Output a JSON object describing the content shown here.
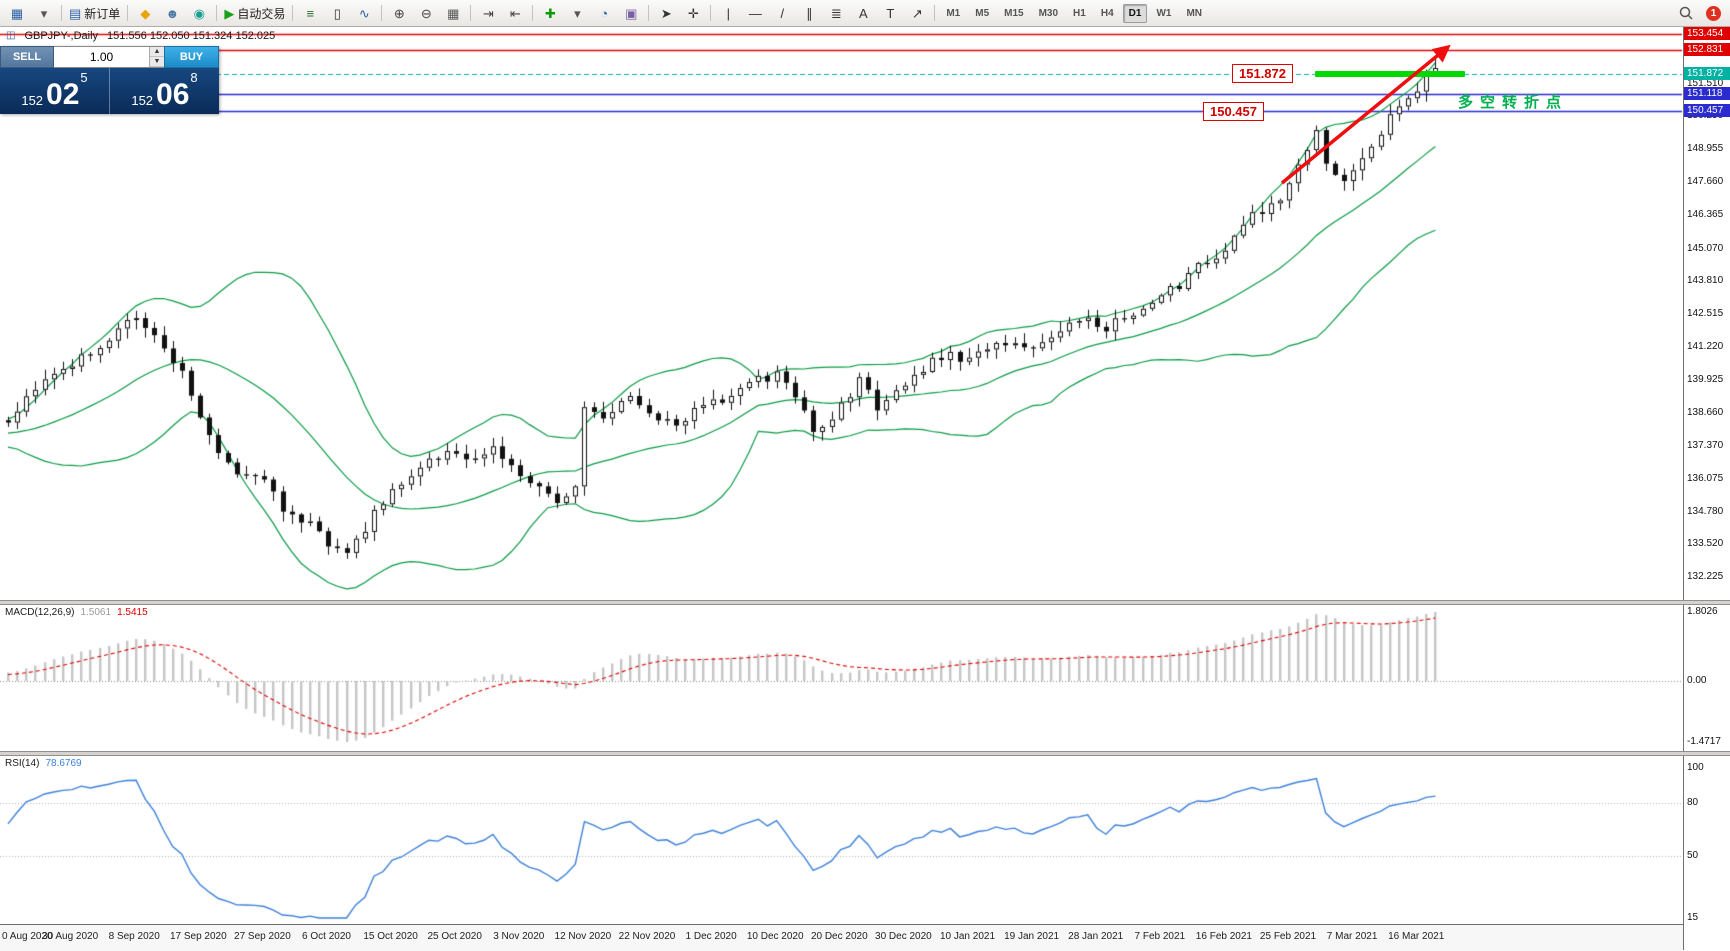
{
  "toolbar": {
    "groups": [
      {
        "items": [
          {
            "name": "chart-window-icon",
            "glyph": "▦",
            "color": "#2a5fa5"
          },
          {
            "name": "window-dropdown-caret-icon",
            "glyph": "▾",
            "color": "#555"
          }
        ]
      },
      {
        "items": [
          {
            "name": "new-order-button",
            "glyph": "▤",
            "color": "#2a5fa5",
            "label": "新订单"
          }
        ]
      },
      {
        "items": [
          {
            "name": "megaphone-icon",
            "glyph": "◆",
            "color": "#e8a400"
          },
          {
            "name": "profile-icon",
            "glyph": "☻",
            "color": "#4a7aa6"
          },
          {
            "name": "community-icon",
            "glyph": "◉",
            "color": "#1a9e8f"
          }
        ]
      },
      {
        "items": [
          {
            "name": "autotrade-button",
            "glyph": "▶",
            "color": "#18a018",
            "label": "自动交易"
          }
        ]
      },
      {
        "items": [
          {
            "name": "bar-chart-icon",
            "glyph": "≡",
            "color": "#2f6f2f"
          },
          {
            "name": "candlestick-chart-icon",
            "glyph": "▯",
            "color": "#333333"
          },
          {
            "name": "line-chart-icon",
            "glyph": "∿",
            "color": "#2a5fa5"
          }
        ]
      },
      {
        "items": [
          {
            "name": "zoom-in-icon",
            "glyph": "⊕",
            "color": "#444444"
          },
          {
            "name": "zoom-out-icon",
            "glyph": "⊖",
            "color": "#444444"
          },
          {
            "name": "tile-windows-icon",
            "glyph": "▦",
            "color": "#555555"
          }
        ]
      },
      {
        "items": [
          {
            "name": "auto-scroll-icon",
            "glyph": "⇥",
            "color": "#444444"
          },
          {
            "name": "chart-shift-icon",
            "glyph": "⇤",
            "color": "#444444"
          }
        ]
      },
      {
        "items": [
          {
            "name": "indicators-icon",
            "glyph": "✚",
            "color": "#0a9a0a"
          },
          {
            "name": "indicators-caret-icon",
            "glyph": "▾",
            "color": "#555555"
          },
          {
            "name": "periods-icon",
            "glyph": "◔",
            "color": "#2a5fa5"
          },
          {
            "name": "templates-icon",
            "glyph": "▣",
            "color": "#7a5fa5"
          }
        ]
      },
      {
        "items": [
          {
            "name": "cursor-icon",
            "glyph": "➤",
            "color": "#333333"
          },
          {
            "name": "crosshair-icon",
            "glyph": "✛",
            "color": "#333333"
          }
        ]
      },
      {
        "items": [
          {
            "name": "vertical-line-icon",
            "glyph": "|",
            "color": "#333333"
          },
          {
            "name": "horizontal-line-icon",
            "glyph": "—",
            "color": "#333333"
          },
          {
            "name": "trendline-icon",
            "glyph": "/",
            "color": "#333333"
          },
          {
            "name": "channel-icon",
            "glyph": "∥",
            "color": "#333333"
          },
          {
            "name": "fibonacci-icon",
            "glyph": "≣",
            "color": "#333333"
          },
          {
            "name": "text-icon",
            "glyph": "A",
            "color": "#333333"
          },
          {
            "name": "label-icon",
            "glyph": "T",
            "color": "#333333"
          },
          {
            "name": "arrows-icon",
            "glyph": "↗",
            "color": "#333333"
          }
        ]
      }
    ],
    "timeframes": [
      "M1",
      "M5",
      "M15",
      "M30",
      "H1",
      "H4",
      "D1",
      "W1",
      "MN"
    ],
    "active_timeframe": "D1",
    "notification_count": "1"
  },
  "chart_header": {
    "symbol_period": "GBPJPY-,Daily",
    "ohlc": "151.556 152.050 151.324 152.025"
  },
  "trade_panel": {
    "sell_label": "SELL",
    "buy_label": "BUY",
    "volume": "1.00",
    "sell_price": {
      "prefix": "152",
      "big": "02",
      "sup": "5"
    },
    "buy_price": {
      "prefix": "152",
      "big": "06",
      "sup": "8"
    }
  },
  "annotations": {
    "resistance_label": "151.872",
    "support_label": "150.457",
    "note_text": "多空转折点"
  },
  "price_axis": {
    "plain_ticks": [
      "151.510",
      "150.250",
      "148.955",
      "147.660",
      "146.365",
      "145.070",
      "143.810",
      "142.515",
      "141.220",
      "139.925",
      "138.660",
      "137.370",
      "136.075",
      "134.780",
      "133.520",
      "132.225"
    ],
    "line_labels": [
      {
        "value": "153.454",
        "bg": "#e00000"
      },
      {
        "value": "152.831",
        "bg": "#e00000"
      },
      {
        "value": "151.872",
        "bg": "#00b2a2"
      },
      {
        "value": "151.118",
        "bg": "#2b2bd0"
      },
      {
        "value": "150.457",
        "bg": "#2b2bd0"
      }
    ]
  },
  "macd_panel": {
    "name": "MACD(12,26,9)",
    "value_main": "1.5061",
    "value_signal": "1.5415",
    "scale": [
      "1.8026",
      "0.00",
      "-1.4717"
    ]
  },
  "rsi_panel": {
    "name": "RSI(14)",
    "value": "78.6769",
    "scale": [
      "100",
      "80",
      "50",
      "15"
    ]
  },
  "time_axis": [
    "0 Aug 2020",
    "30 Aug 2020",
    "8 Sep 2020",
    "17 Sep 2020",
    "27 Sep 2020",
    "6 Oct 2020",
    "15 Oct 2020",
    "25 Oct 2020",
    "3 Nov 2020",
    "12 Nov 2020",
    "22 Nov 2020",
    "1 Dec 2020",
    "10 Dec 2020",
    "20 Dec 2020",
    "30 Dec 2020",
    "10 Jan 2021",
    "19 Jan 2021",
    "28 Jan 2021",
    "7 Feb 2021",
    "16 Feb 2021",
    "25 Feb 2021",
    "7 Mar 2021",
    "16 Mar 2021"
  ],
  "chart_data": {
    "type": "candlestick",
    "symbol": "GBPJPY",
    "timeframe": "Daily",
    "visible_ohlc": {
      "open": "151.556",
      "high": "152.050",
      "low": "151.324",
      "close": "152.025"
    },
    "bid": "152.025",
    "ask": "152.068",
    "indicators": {
      "bollinger_period": 20,
      "bollinger_deviation": 2,
      "macd": [
        12,
        26,
        9
      ],
      "rsi_period": 14
    },
    "levels": {
      "red_lines": [
        153.454,
        152.831
      ],
      "blue_lines": [
        151.118,
        150.457
      ],
      "current_price_line": 151.872,
      "resistance_zone_price": 151.872
    },
    "candle_count": 157,
    "close_waypoints": [
      [
        0,
        138.4
      ],
      [
        2,
        139.2
      ],
      [
        5,
        140.2
      ],
      [
        9,
        141.0
      ],
      [
        12,
        141.9
      ],
      [
        14,
        142.5
      ],
      [
        16,
        141.8
      ],
      [
        19,
        140.3
      ],
      [
        21,
        138.4
      ],
      [
        23,
        136.9
      ],
      [
        25,
        136.4
      ],
      [
        28,
        135.9
      ],
      [
        30,
        134.9
      ],
      [
        33,
        134.3
      ],
      [
        35,
        133.4
      ],
      [
        37,
        133.1
      ],
      [
        39,
        134.2
      ],
      [
        42,
        135.6
      ],
      [
        45,
        136.5
      ],
      [
        48,
        137.2
      ],
      [
        51,
        136.7
      ],
      [
        53,
        137.4
      ],
      [
        56,
        136.3
      ],
      [
        58,
        135.6
      ],
      [
        60,
        135.1
      ],
      [
        62,
        135.8
      ],
      [
        63,
        138.9
      ],
      [
        65,
        138.6
      ],
      [
        68,
        139.4
      ],
      [
        70,
        138.6
      ],
      [
        73,
        138.3
      ],
      [
        76,
        138.9
      ],
      [
        79,
        139.4
      ],
      [
        81,
        139.8
      ],
      [
        84,
        140.2
      ],
      [
        86,
        139.4
      ],
      [
        88,
        137.9
      ],
      [
        90,
        138.6
      ],
      [
        93,
        139.9
      ],
      [
        95,
        138.9
      ],
      [
        97,
        139.5
      ],
      [
        100,
        140.4
      ],
      [
        103,
        141.0
      ],
      [
        105,
        140.7
      ],
      [
        108,
        141.4
      ],
      [
        111,
        141.2
      ],
      [
        114,
        141.7
      ],
      [
        117,
        142.4
      ],
      [
        120,
        142.0
      ],
      [
        124,
        142.6
      ],
      [
        127,
        143.4
      ],
      [
        130,
        144.3
      ],
      [
        133,
        145.0
      ],
      [
        136,
        146.3
      ],
      [
        139,
        146.9
      ],
      [
        141,
        148.2
      ],
      [
        143,
        149.6
      ],
      [
        144,
        148.2
      ],
      [
        146,
        147.9
      ],
      [
        148,
        148.5
      ],
      [
        150,
        149.7
      ],
      [
        152,
        150.6
      ],
      [
        154,
        151.3
      ],
      [
        156,
        152.03
      ]
    ],
    "prehistory_close_waypoints": [
      [
        -25,
        137.3
      ],
      [
        -18,
        137.8
      ],
      [
        -10,
        137.6
      ],
      [
        -5,
        138.0
      ],
      [
        -1,
        138.25
      ]
    ]
  }
}
